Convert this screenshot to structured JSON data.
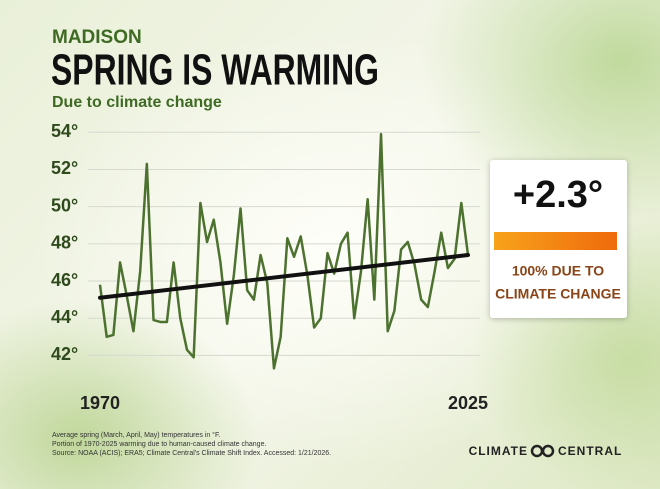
{
  "chart_data": {
    "type": "line",
    "region": "MADISON",
    "title": "SPRING IS WARMING",
    "subtitle": "Due to climate change",
    "x": [
      1970,
      1971,
      1972,
      1973,
      1974,
      1975,
      1976,
      1977,
      1978,
      1979,
      1980,
      1981,
      1982,
      1983,
      1984,
      1985,
      1986,
      1987,
      1988,
      1989,
      1990,
      1991,
      1992,
      1993,
      1994,
      1995,
      1996,
      1997,
      1998,
      1999,
      2000,
      2001,
      2002,
      2003,
      2004,
      2005,
      2006,
      2007,
      2008,
      2009,
      2010,
      2011,
      2012,
      2013,
      2014,
      2015,
      2016,
      2017,
      2018,
      2019,
      2020,
      2021,
      2022,
      2023,
      2024,
      2025
    ],
    "series": [
      {
        "color": "#4d7230",
        "values": [
          45.8,
          43.0,
          43.1,
          47.0,
          45.2,
          43.3,
          46.5,
          52.3,
          43.9,
          43.8,
          43.8,
          47.0,
          44.0,
          42.3,
          41.9,
          50.2,
          48.1,
          49.3,
          47.0,
          43.7,
          46.3,
          49.9,
          45.5,
          45.0,
          47.4,
          45.9,
          41.3,
          43.0,
          48.3,
          47.3,
          48.4,
          46.3,
          43.5,
          44.0,
          47.5,
          46.4,
          48.0,
          48.6,
          44.0,
          46.5,
          50.4,
          45.0,
          53.9,
          43.3,
          44.4,
          47.7,
          48.1,
          46.9,
          45.0,
          44.6,
          46.5,
          48.6,
          46.7,
          47.2,
          50.2,
          47.4
        ]
      }
    ],
    "trend": {
      "color": "#111111",
      "x": [
        1970,
        2025
      ],
      "values": [
        45.1,
        47.4
      ]
    },
    "xlim": [
      1970,
      2025
    ],
    "xticks": [
      1970,
      2025
    ],
    "ylim": [
      41,
      54.5
    ],
    "yticks": [
      {
        "value": 42,
        "label": "42°"
      },
      {
        "value": 44,
        "label": "44°"
      },
      {
        "value": 46,
        "label": "46°"
      },
      {
        "value": 48,
        "label": "48°"
      },
      {
        "value": 50,
        "label": "50°"
      },
      {
        "value": 52,
        "label": "52°"
      },
      {
        "value": 54,
        "label": "54°"
      }
    ],
    "grid": true,
    "callout": {
      "value_label": "+2.3°",
      "label_lines": [
        "100% DUE TO",
        "CLIMATE CHANGE"
      ]
    },
    "footnotes": [
      "Average spring (March, April, May) temperatures in °F.",
      "Portion of 1970-2025 warming due to human-caused climate change.",
      "Source: NOAA (ACIS); ERA5; Climate Central's Climate Shift Index. Accessed: 1/21/2026."
    ],
    "logo": [
      "CLIMATE",
      "CENTRAL"
    ]
  }
}
